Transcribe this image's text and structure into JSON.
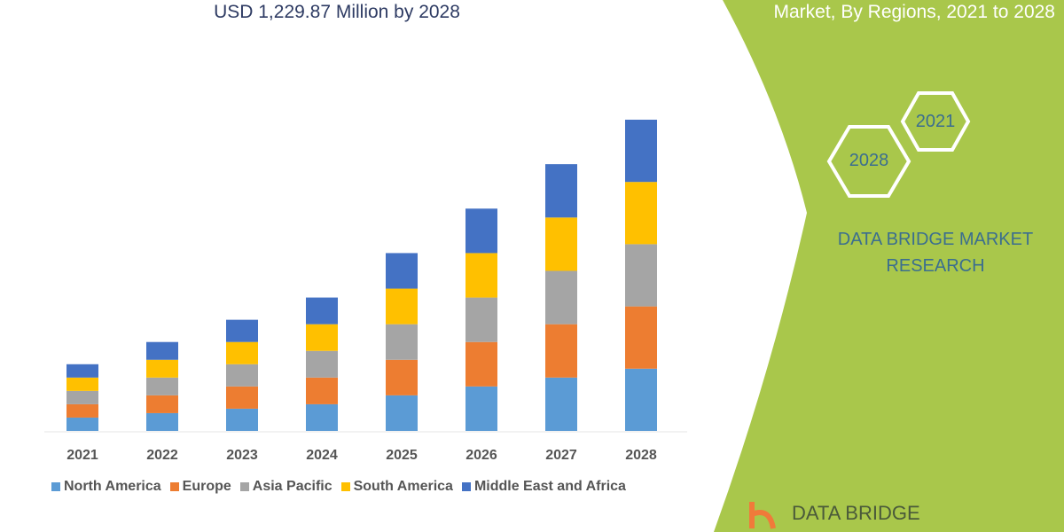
{
  "header": {
    "title": "USD 1,229.87 Million by 2028",
    "right_title": "Market, By Regions, 2021 to 2028"
  },
  "badges": {
    "hex_2021": "2021",
    "hex_2028": "2028"
  },
  "brand": {
    "line1": "DATA BRIDGE MARKET",
    "line2": "RESEARCH",
    "logo_text": "DATA BRIDGE"
  },
  "colors": {
    "panel_green": "#a9c74b",
    "title": "#2e3b63",
    "brand_text": "#3b6e8f"
  },
  "chart_data": {
    "type": "bar",
    "stacked": true,
    "categories": [
      "2021",
      "2022",
      "2023",
      "2024",
      "2025",
      "2026",
      "2027",
      "2028"
    ],
    "series": [
      {
        "name": "North America",
        "color": "#5b9bd5",
        "values": [
          15,
          20,
          25,
          30,
          40,
          50,
          60,
          70
        ]
      },
      {
        "name": "Europe",
        "color": "#ed7d31",
        "values": [
          15,
          20,
          25,
          30,
          40,
          50,
          60,
          70
        ]
      },
      {
        "name": "Asia Pacific",
        "color": "#a5a5a5",
        "values": [
          15,
          20,
          25,
          30,
          40,
          50,
          60,
          70
        ]
      },
      {
        "name": "South America",
        "color": "#ffc000",
        "values": [
          15,
          20,
          25,
          30,
          40,
          50,
          60,
          70
        ]
      },
      {
        "name": "Middle East and Africa",
        "color": "#4472c4",
        "values": [
          15,
          20,
          25,
          30,
          40,
          50,
          60,
          70
        ]
      }
    ],
    "ylim": [
      0,
      350
    ],
    "grid": false,
    "legend_placement": "bottom"
  }
}
